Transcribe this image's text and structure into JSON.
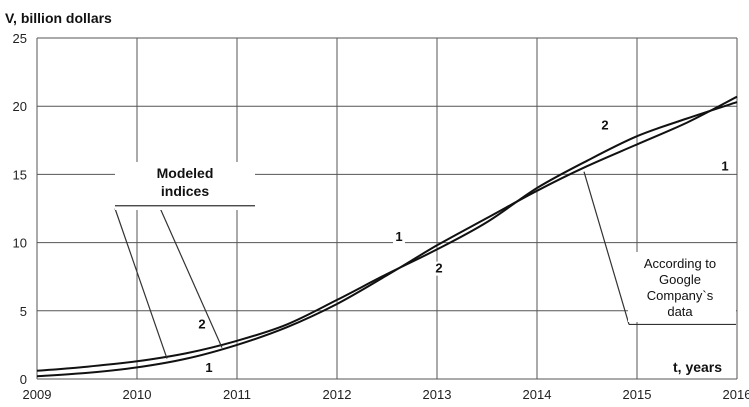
{
  "chart_data": {
    "type": "line",
    "xlabel": "t, years",
    "ylabel": "V, billion dollars",
    "xlim": [
      2009,
      2016
    ],
    "ylim": [
      0,
      25
    ],
    "x_ticks": [
      "2009",
      "2010",
      "2011",
      "2012",
      "2013",
      "2014",
      "2015",
      "2016"
    ],
    "y_ticks": [
      "0",
      "5",
      "10",
      "15",
      "20",
      "25"
    ],
    "grid": true,
    "series": [
      {
        "name": "1",
        "x": [
          2009,
          2009.5,
          2010,
          2010.5,
          2011,
          2011.5,
          2012,
          2012.5,
          2013,
          2013.5,
          2014,
          2014.5,
          2015,
          2015.5,
          2016
        ],
        "values": [
          0.2,
          0.45,
          0.85,
          1.5,
          2.5,
          3.8,
          5.5,
          7.6,
          9.8,
          11.8,
          13.8,
          15.6,
          17.2,
          18.8,
          20.7
        ]
      },
      {
        "name": "2",
        "x": [
          2009,
          2009.5,
          2010,
          2010.5,
          2011,
          2011.5,
          2012,
          2012.5,
          2013,
          2013.5,
          2014,
          2014.5,
          2015,
          2015.5,
          2016
        ],
        "values": [
          0.6,
          0.9,
          1.3,
          1.9,
          2.8,
          4.0,
          5.8,
          7.7,
          9.5,
          11.5,
          14.0,
          16.0,
          17.8,
          19.1,
          20.3
        ]
      }
    ],
    "curve_labels": [
      {
        "text": "1",
        "x": 2010.72,
        "y": 0.5
      },
      {
        "text": "2",
        "x": 2010.65,
        "y": 3.7
      },
      {
        "text": "1",
        "x": 2012.62,
        "y": 10.1
      },
      {
        "text": "2",
        "x": 2013.02,
        "y": 7.8
      },
      {
        "text": "1",
        "x": 2015.88,
        "y": 15.3
      },
      {
        "text": "2",
        "x": 2014.68,
        "y": 18.3
      }
    ],
    "annotations": [
      {
        "id": "modeled",
        "lines": [
          "Modeled",
          "indices"
        ],
        "pointers": [
          {
            "from": [
              2009.78,
              12.5
            ],
            "to": [
              2010.3,
              1.5
            ]
          },
          {
            "from": [
              2010.22,
              12.7
            ],
            "to": [
              2010.85,
              2.3
            ]
          }
        ]
      },
      {
        "id": "google",
        "lines": [
          "According to",
          "Google",
          "Company`s",
          "data"
        ],
        "pointers": [
          {
            "from": [
              2014.92,
              4.0
            ],
            "to": [
              2014.47,
              15.2
            ]
          }
        ]
      }
    ]
  }
}
